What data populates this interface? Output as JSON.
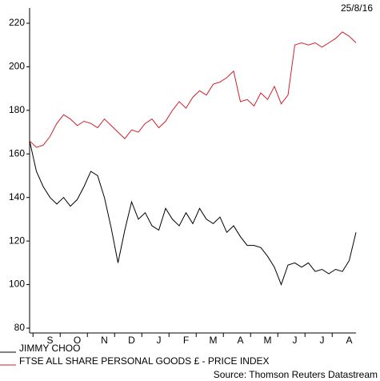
{
  "chart_data": {
    "type": "line",
    "date": "25/8/16",
    "source": "Source: Thomson Reuters Datastream",
    "categories": [
      null,
      null,
      null,
      "S",
      null,
      null,
      null,
      "O",
      null,
      null,
      null,
      "N",
      null,
      null,
      null,
      "D",
      null,
      null,
      null,
      "J",
      null,
      null,
      null,
      "F",
      null,
      null,
      null,
      "M",
      null,
      null,
      null,
      "A",
      null,
      null,
      null,
      "M",
      null,
      null,
      null,
      "J",
      null,
      null,
      null,
      "J",
      null,
      null,
      null,
      "A",
      null
    ],
    "series": [
      {
        "name": "JIMMY CHOO",
        "color": "#000000",
        "values": [
          166,
          152,
          145,
          140,
          137,
          140,
          136,
          139,
          145,
          152,
          150,
          140,
          126,
          110,
          125,
          138,
          130,
          133,
          127,
          125,
          135,
          130,
          127,
          133,
          128,
          135,
          130,
          128,
          131,
          124,
          127,
          122,
          118,
          118,
          117,
          113,
          108,
          100,
          109,
          110,
          108,
          110,
          106,
          107,
          105,
          107,
          106,
          111,
          124
        ]
      },
      {
        "name": "FTSE ALL SHARE PERSONAL GOODS £ - PRICE INDEX",
        "color": "#d0202a",
        "values": [
          166,
          163,
          164,
          168,
          174,
          178,
          176,
          173,
          175,
          174,
          172,
          176,
          173,
          170,
          167,
          171,
          170,
          174,
          176,
          172,
          175,
          180,
          184,
          181,
          186,
          189,
          187,
          192,
          193,
          195,
          198,
          184,
          185,
          182,
          188,
          185,
          191,
          183,
          187,
          210,
          211,
          210,
          211,
          209,
          211,
          213,
          216,
          214,
          211
        ]
      }
    ],
    "ylim": [
      80,
      220
    ],
    "yticks": [
      80,
      100,
      120,
      140,
      160,
      180,
      200,
      220
    ]
  }
}
